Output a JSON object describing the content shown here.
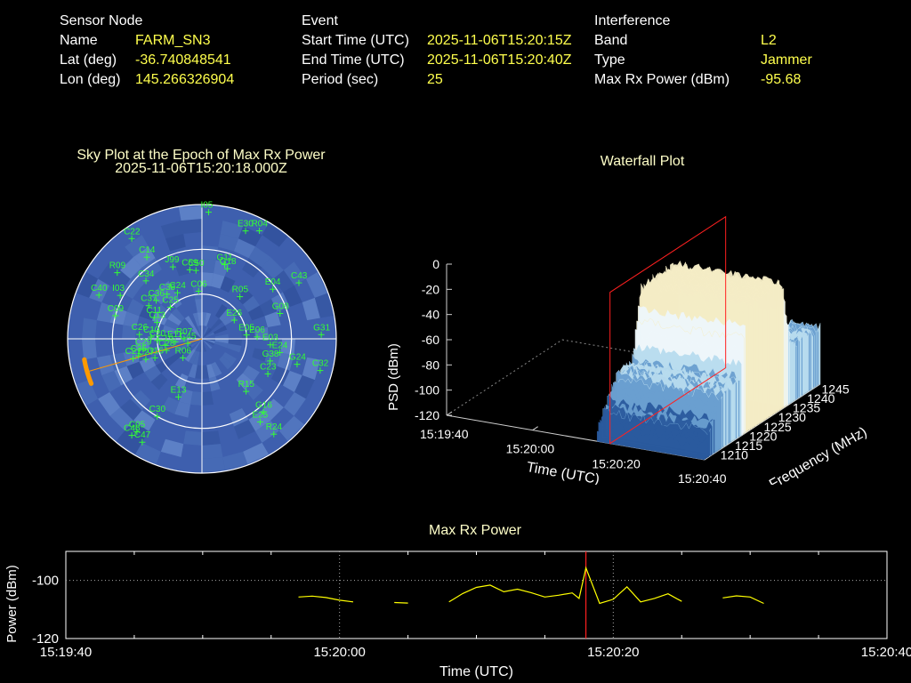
{
  "sensor": {
    "heading": "Sensor Node",
    "rows": [
      {
        "label": "Name",
        "value": "FARM_SN3"
      },
      {
        "label": "Lat (deg)",
        "value": "-36.740848541"
      },
      {
        "label": "Lon (deg)",
        "value": "145.266326904"
      }
    ]
  },
  "event": {
    "heading": "Event",
    "rows": [
      {
        "label": "Start Time (UTC)",
        "value": "2025-11-06T15:20:15Z"
      },
      {
        "label": "End Time (UTC)",
        "value": "2025-11-06T15:20:40Z"
      },
      {
        "label": "Period (sec)",
        "value": "25"
      }
    ]
  },
  "interference": {
    "heading": "Interference",
    "rows": [
      {
        "label": "Band",
        "value": "L2"
      },
      {
        "label": "Type",
        "value": "Jammer"
      },
      {
        "label": "Max Rx Power (dBm)",
        "value": "-95.68"
      }
    ]
  },
  "chart_data": [
    {
      "type": "scatter",
      "subtype": "polar-sky-plot",
      "title": "Sky Plot at the Epoch of Max Rx Power",
      "subtitle": "2025-11-06T15:20:18.000Z",
      "background_color": "#3e5fae",
      "grid_color": "#ffffff",
      "marker_color": "#33ff33",
      "satellites": [
        {
          "id": "I05",
          "az": 3,
          "el": 5
        },
        {
          "id": "R04",
          "az": 28,
          "el": 8
        },
        {
          "id": "E30",
          "az": 22,
          "el": 12
        },
        {
          "id": "C22",
          "az": -35,
          "el": 8
        },
        {
          "id": "C14",
          "az": -34,
          "el": 24
        },
        {
          "id": "G11",
          "az": 17,
          "el": 38
        },
        {
          "id": "G18",
          "az": 20,
          "el": 40
        },
        {
          "id": "C50",
          "az": -5,
          "el": 44
        },
        {
          "id": "C59",
          "az": -10,
          "el": 43
        },
        {
          "id": "J99",
          "az": -22,
          "el": 38
        },
        {
          "id": "R09",
          "az": -52,
          "el": 18
        },
        {
          "id": "C34",
          "az": -44,
          "el": 36
        },
        {
          "id": "E04",
          "az": 55,
          "el": 32
        },
        {
          "id": "C43",
          "az": 60,
          "el": 15
        },
        {
          "id": "R05",
          "az": 42,
          "el": 52
        },
        {
          "id": "C38",
          "az": -38,
          "el": 52
        },
        {
          "id": "C24",
          "az": -28,
          "el": 55
        },
        {
          "id": "C06",
          "az": -4,
          "el": 58
        },
        {
          "id": "I03",
          "az": -62,
          "el": 28
        },
        {
          "id": "C40",
          "az": -67,
          "el": 15
        },
        {
          "id": "C25",
          "az": -45,
          "el": 60
        },
        {
          "id": "C37",
          "az": -58,
          "el": 48
        },
        {
          "id": "C36",
          "az": -50,
          "el": 50
        },
        {
          "id": "E26",
          "az": 60,
          "el": 65
        },
        {
          "id": "C09",
          "az": -75,
          "el": 30
        },
        {
          "id": "C11",
          "az": -66,
          "el": 55
        },
        {
          "id": "C13",
          "az": -70,
          "el": 58
        },
        {
          "id": "G08",
          "az": 72,
          "el": 35
        },
        {
          "id": "G31",
          "az": 88,
          "el": 10
        },
        {
          "id": "C26",
          "az": -86,
          "el": 48
        },
        {
          "id": "C10",
          "az": -88,
          "el": 56
        },
        {
          "id": "C20",
          "az": -92,
          "el": 60
        },
        {
          "id": "E11",
          "az": -96,
          "el": 72
        },
        {
          "id": "R07",
          "az": -90,
          "el": 78
        },
        {
          "id": "E05",
          "az": 85,
          "el": 60
        },
        {
          "id": "E06",
          "az": 88,
          "el": 53
        },
        {
          "id": "E03",
          "az": 95,
          "el": 44
        },
        {
          "id": "E24",
          "az": 100,
          "el": 37
        },
        {
          "id": "G24",
          "az": 105,
          "el": 24
        },
        {
          "id": "C32",
          "az": 105,
          "el": 8
        },
        {
          "id": "G38",
          "az": 108,
          "el": 42
        },
        {
          "id": "C23",
          "az": 118,
          "el": 40
        },
        {
          "id": "C29",
          "az": -100,
          "el": 50
        },
        {
          "id": "C35",
          "az": -105,
          "el": 46
        },
        {
          "id": "C27",
          "az": -110,
          "el": 50
        },
        {
          "id": "R06",
          "az": -135,
          "el": 72
        },
        {
          "id": "C28",
          "az": -108,
          "el": 65
        },
        {
          "id": "C45",
          "az": -108,
          "el": 80
        },
        {
          "id": "C19",
          "az": -100,
          "el": 65
        },
        {
          "id": "C21",
          "az": -106,
          "el": 42
        },
        {
          "id": "G16",
          "az": -112,
          "el": 56
        },
        {
          "id": "E13",
          "az": -158,
          "el": 48
        },
        {
          "id": "C30",
          "az": -150,
          "el": 30
        },
        {
          "id": "C05",
          "az": -145,
          "el": 14
        },
        {
          "id": "C46",
          "az": -144,
          "el": 10
        },
        {
          "id": "C47",
          "az": -150,
          "el": 10
        },
        {
          "id": "R15",
          "az": 140,
          "el": 44
        },
        {
          "id": "G16",
          "az": 140,
          "el": 26
        },
        {
          "id": "E25",
          "az": 145,
          "el": 22
        },
        {
          "id": "R24",
          "az": 143,
          "el": 10
        }
      ],
      "highlight": {
        "color": "#ff9a00",
        "az_range": [
          -112,
          -100
        ],
        "el": 10
      }
    },
    {
      "type": "area",
      "subtype": "3d-waterfall",
      "title": "Waterfall Plot",
      "xlabel": "Time (UTC)",
      "ylabel": "Frequency (MHz)",
      "zlabel": "PSD (dBm)",
      "x_ticks": [
        "15:19:40",
        "15:20:00",
        "15:20:20",
        "15:20:40"
      ],
      "y_ticks": [
        "1210",
        "1215",
        "1220",
        "1225",
        "1230",
        "1235",
        "1240",
        "1245"
      ],
      "z_ticks": [
        "0",
        "-20",
        "-40",
        "-60",
        "-80",
        "-100",
        "-120"
      ],
      "zlim": [
        -120,
        0
      ],
      "time_range": [
        "15:20:15",
        "15:20:40"
      ],
      "freq_range": [
        1207,
        1247
      ],
      "marker_time": "15:20:18",
      "marker_color": "#ff2020",
      "peak_band_mhz": [
        1222,
        1234
      ],
      "level_in_band_dbm": -20,
      "level_out_band_dbm": -75,
      "colormap": [
        "#2a5a9e",
        "#6a9fd0",
        "#b8dcef",
        "#eef7fb",
        "#f5edc6"
      ]
    },
    {
      "type": "line",
      "title": "Max Rx Power",
      "xlabel": "Time (UTC)",
      "ylabel": "Power (dBm)",
      "x_ticks": [
        "15:19:40",
        "15:20:00",
        "15:20:20",
        "15:20:40"
      ],
      "y_ticks": [
        "-100",
        "-120"
      ],
      "ylim": [
        -120,
        -90
      ],
      "xlim_sec": [
        0,
        60
      ],
      "line_color": "#ffff00",
      "marker_sec": 38,
      "marker_color": "#ff2020",
      "segments": [
        [
          [
            17,
            -105.7
          ],
          [
            18,
            -105.4
          ],
          [
            19,
            -105.9
          ],
          [
            20,
            -106.8
          ],
          [
            21,
            -107.4
          ]
        ],
        [
          [
            24,
            -107.6
          ],
          [
            25,
            -107.8
          ]
        ],
        [
          [
            28,
            -107.4
          ],
          [
            29,
            -104.5
          ],
          [
            30,
            -102.4
          ],
          [
            31,
            -101.6
          ],
          [
            32,
            -103.9
          ],
          [
            33,
            -103.0
          ],
          [
            34,
            -104.2
          ],
          [
            35,
            -105.7
          ],
          [
            36,
            -105.1
          ],
          [
            37,
            -104.3
          ],
          [
            37.5,
            -106.2
          ],
          [
            38,
            -95.68
          ],
          [
            39,
            -107.9
          ],
          [
            40,
            -106.5
          ],
          [
            41,
            -102.2
          ],
          [
            42,
            -107.4
          ],
          [
            43,
            -106.2
          ],
          [
            44,
            -104.6
          ],
          [
            45,
            -107.2
          ]
        ],
        [
          [
            48,
            -106.0
          ],
          [
            49,
            -105.3
          ],
          [
            50,
            -105.7
          ],
          [
            51,
            -107.9
          ]
        ]
      ]
    }
  ]
}
